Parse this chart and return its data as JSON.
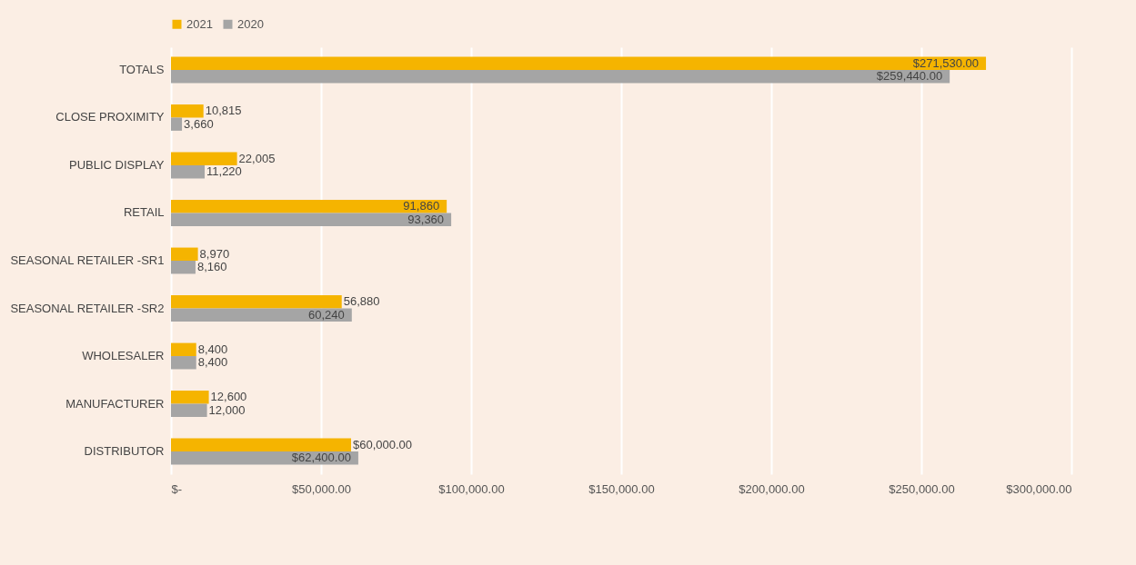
{
  "chart_data": {
    "type": "bar",
    "orientation": "horizontal",
    "categories": [
      "TOTALS",
      "CLOSE PROXIMITY",
      "PUBLIC DISPLAY",
      "RETAIL",
      "SEASONAL RETAILER -SR1",
      "SEASONAL RETAILER -SR2",
      "WHOLESALER",
      "MANUFACTURER",
      "DISTRIBUTOR"
    ],
    "series": [
      {
        "name": "2021",
        "color": "#f5b400",
        "values": [
          271530,
          10815,
          22005,
          91860,
          8970,
          56880,
          8400,
          12600,
          60000
        ],
        "value_labels": [
          "$271,530.00",
          "10,815",
          "22,005",
          "91,860",
          "8,970",
          "56,880",
          "8,400",
          "12,600",
          "$60,000.00"
        ]
      },
      {
        "name": "2020",
        "color": "#a5a5a5",
        "values": [
          259440,
          3660,
          11220,
          93360,
          8160,
          60240,
          8400,
          12000,
          62400
        ],
        "value_labels": [
          "$259,440.00",
          "3,660",
          "11,220",
          "93,360",
          "8,160",
          "60,240",
          "8,400",
          "12,000",
          "$62,400.00"
        ]
      }
    ],
    "xlim": [
      0,
      300000
    ],
    "xticks": [
      {
        "value": 0,
        "label": "$-"
      },
      {
        "value": 50000,
        "label": "$50,000.00"
      },
      {
        "value": 100000,
        "label": "$100,000.00"
      },
      {
        "value": 150000,
        "label": "$150,000.00"
      },
      {
        "value": 200000,
        "label": "$200,000.00"
      },
      {
        "value": 250000,
        "label": "$250,000.00"
      },
      {
        "value": 300000,
        "label": "$300,000.00"
      }
    ],
    "grid": "x",
    "legend": "top"
  }
}
